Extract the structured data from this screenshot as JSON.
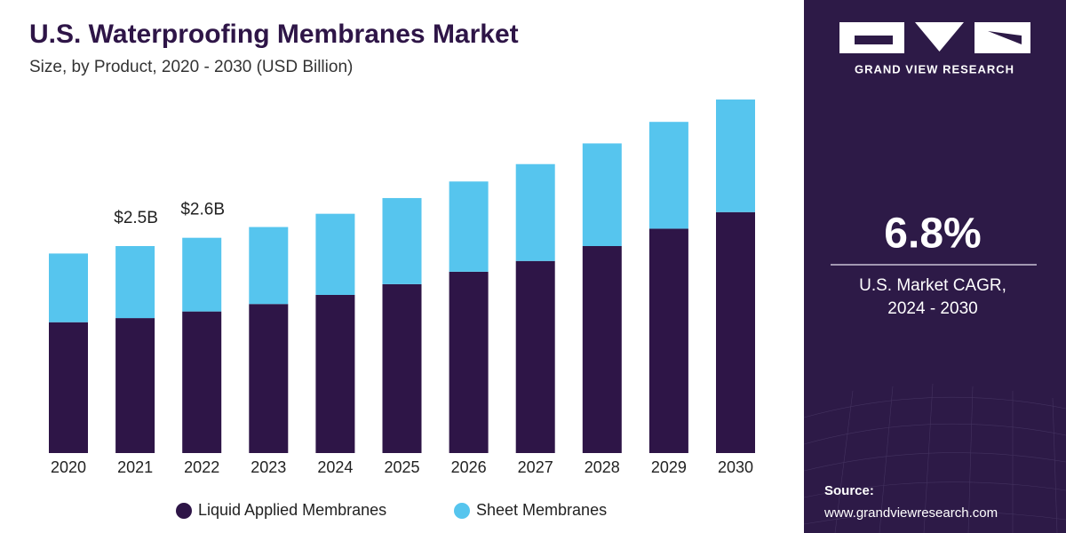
{
  "chart_data": {
    "type": "stacked_bar",
    "title": "U.S. Waterproofing Membranes Market",
    "subtitle": "Size, by Product, 2020 - 2030 (USD Billion)",
    "categories": [
      "2020",
      "2021",
      "2022",
      "2023",
      "2024",
      "2025",
      "2026",
      "2027",
      "2028",
      "2029",
      "2030"
    ],
    "series": [
      {
        "name": "Liquid Applied Membranes",
        "color": "#2e1547",
        "values": [
          1.58,
          1.63,
          1.71,
          1.8,
          1.91,
          2.04,
          2.19,
          2.32,
          2.5,
          2.71,
          2.91
        ]
      },
      {
        "name": "Sheet Membranes",
        "color": "#56c5ee",
        "values": [
          0.83,
          0.87,
          0.89,
          0.93,
          0.98,
          1.04,
          1.09,
          1.17,
          1.24,
          1.29,
          1.36
        ]
      }
    ],
    "annotations": [
      {
        "x": "2021",
        "value": 2.5,
        "label": "$2.5B"
      },
      {
        "x": "2022",
        "value": 2.6,
        "label": "$2.6B"
      }
    ],
    "legend": "bottom"
  },
  "sidebar": {
    "brand": "GRAND VIEW RESEARCH",
    "cagr": "6.8%",
    "cagr_label": [
      "U.S. Market CAGR,",
      "2024 - 2030"
    ],
    "source_label": "Source:",
    "source_url": "www.grandviewresearch.com"
  }
}
